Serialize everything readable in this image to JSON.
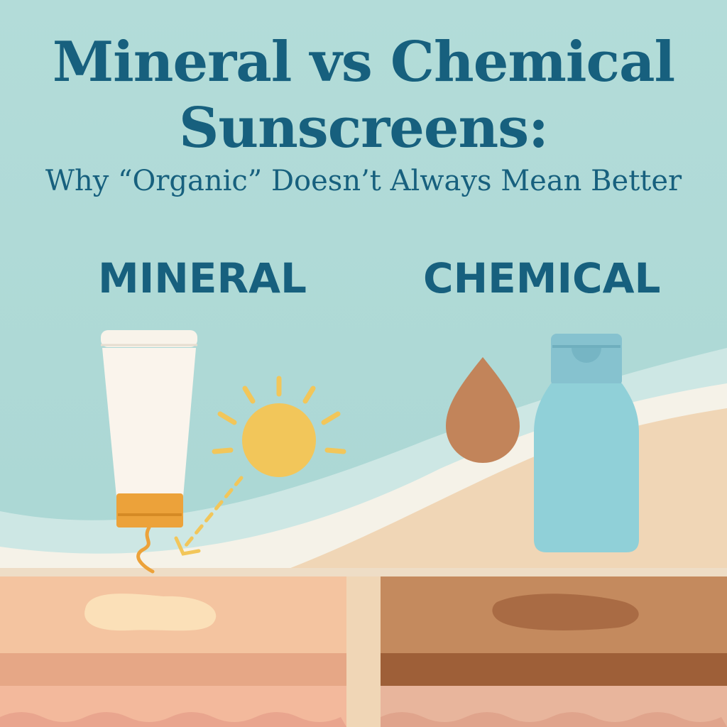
{
  "title_line1": "Mineral vs Chemical",
  "title_line2": "Sunscreens:",
  "subtitle": "Why “Organic” Doesn’t Always Mean Better",
  "left_label": "MINERAL",
  "right_label": "CHEMICAL",
  "icons": [
    "sunscreen-tube-icon",
    "sun-icon",
    "dashed-arrow-icon",
    "droplet-icon",
    "sunscreen-bottle-icon",
    "skin-layers-icon"
  ],
  "colors": {
    "title": "#17607e",
    "background": "#b8dedb",
    "sand": "#f0d6b6",
    "sun": "#f2c65a",
    "bottle": "#8fcfd8",
    "tube_cap": "#eba23a",
    "droplet": "#c2845a"
  }
}
